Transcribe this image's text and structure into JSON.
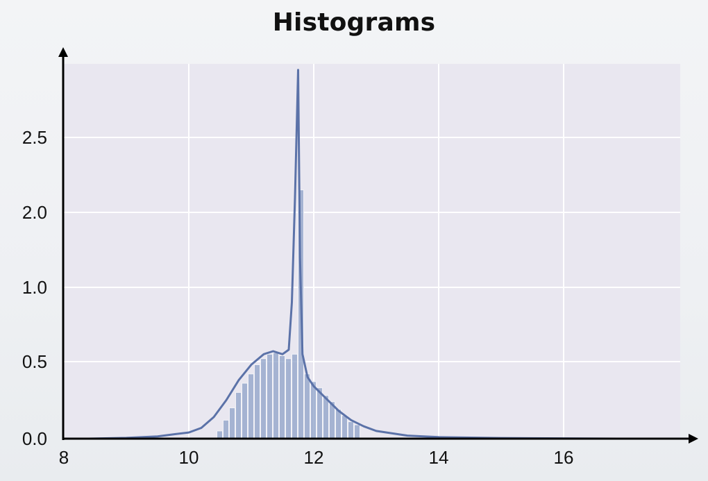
{
  "chart_data": {
    "type": "bar",
    "title": "Histograms",
    "xlabel": "",
    "ylabel": "",
    "xlim": [
      8,
      18
    ],
    "x_ticks": [
      "8",
      "10",
      "12",
      "14",
      "16"
    ],
    "y_ticks": [
      "0.0",
      "0.5",
      "1.0",
      "2.0",
      "2.5"
    ],
    "y_tick_values": [
      0.0,
      0.5,
      1.0,
      2.0,
      2.5
    ],
    "y_scale_note": "axis ticks unevenly spaced as printed",
    "grid": true,
    "bar_color": "#8ea1c8",
    "line_color": "#5b72a8",
    "bins": {
      "start": 10.45,
      "width": 0.1,
      "heights": [
        0.05,
        0.12,
        0.2,
        0.3,
        0.36,
        0.42,
        0.48,
        0.52,
        0.55,
        0.56,
        0.54,
        0.52,
        0.55,
        2.15,
        0.42,
        0.37,
        0.33,
        0.28,
        0.24,
        0.19,
        0.15,
        0.11,
        0.09
      ]
    },
    "kde": {
      "x": [
        8.4,
        9.0,
        9.5,
        9.8,
        10.0,
        10.2,
        10.4,
        10.6,
        10.8,
        11.0,
        11.2,
        11.35,
        11.5,
        11.6,
        11.65,
        11.7,
        11.75,
        11.78,
        11.82,
        11.9,
        12.0,
        12.2,
        12.4,
        12.6,
        12.8,
        13.0,
        13.5,
        14.0,
        15.0,
        16.0,
        17.0
      ],
      "y": [
        0.0,
        0.005,
        0.015,
        0.03,
        0.04,
        0.07,
        0.14,
        0.25,
        0.38,
        0.48,
        0.55,
        0.57,
        0.55,
        0.58,
        0.9,
        2.1,
        2.95,
        1.4,
        0.55,
        0.4,
        0.34,
        0.26,
        0.18,
        0.12,
        0.08,
        0.05,
        0.02,
        0.01,
        0.004,
        0.002,
        0.0
      ]
    }
  }
}
